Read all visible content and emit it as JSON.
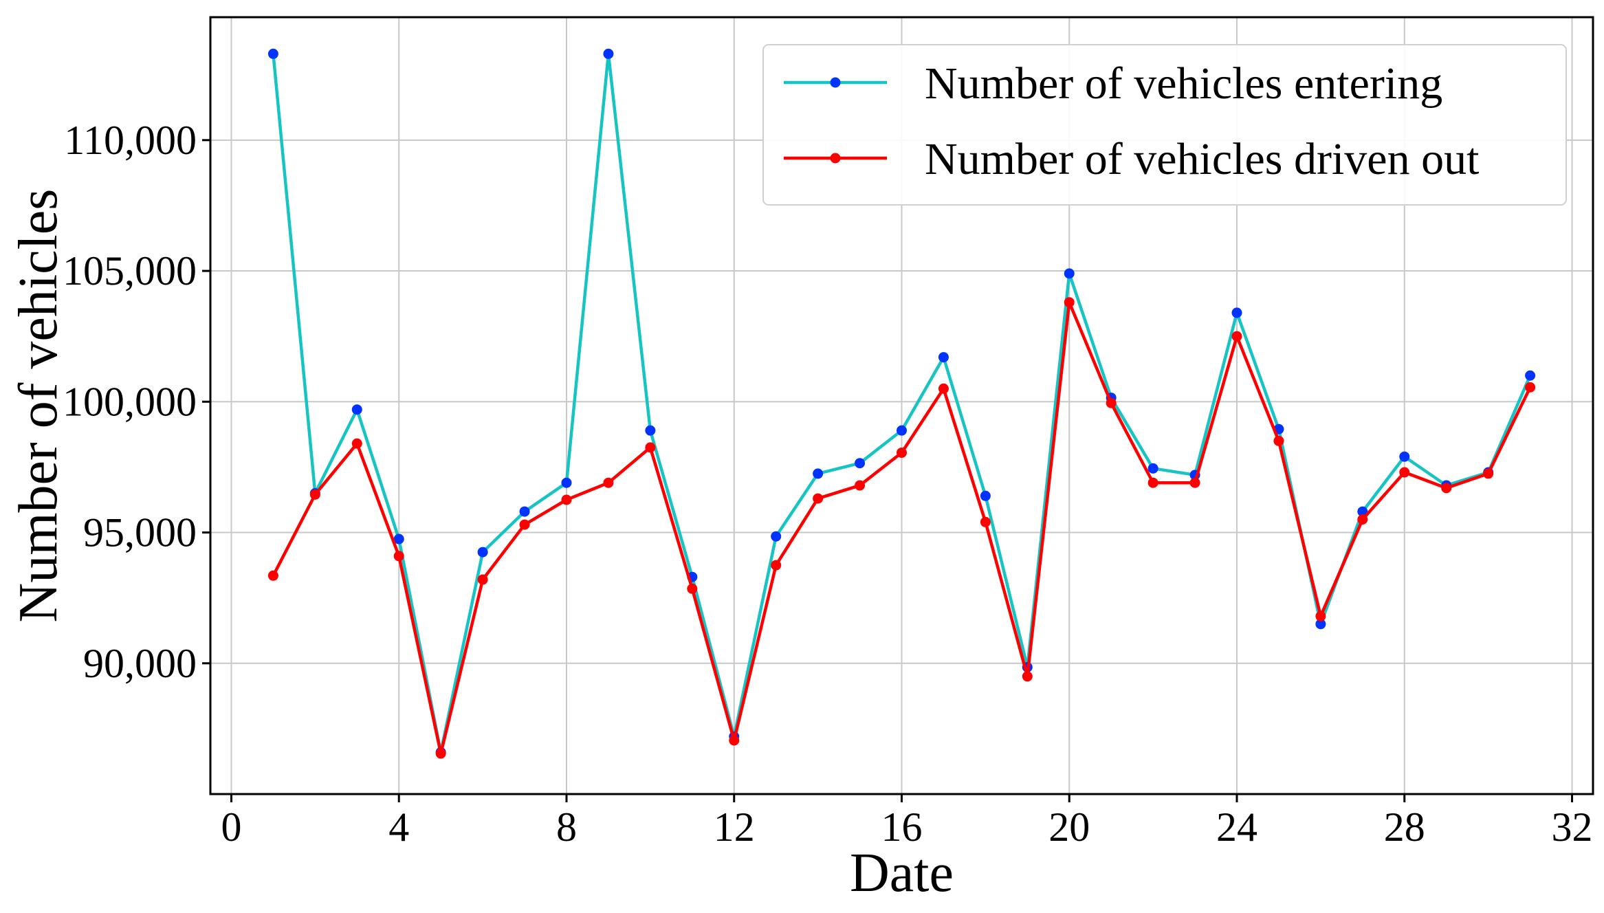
{
  "chart_data": {
    "type": "line",
    "title": "",
    "xlabel": "Date",
    "ylabel": "Number of vehicles",
    "xlim": [
      -0.5,
      32.5
    ],
    "ylim": [
      85000,
      114700
    ],
    "x_ticks": [
      0,
      4,
      8,
      12,
      16,
      20,
      24,
      28,
      32
    ],
    "y_ticks": [
      90000,
      95000,
      100000,
      105000,
      110000
    ],
    "y_tick_labels": [
      "90,000",
      "95,000",
      "100,000",
      "105,000",
      "110,000"
    ],
    "grid": true,
    "legend_position": "top-right",
    "x": [
      1,
      2,
      3,
      4,
      5,
      6,
      7,
      8,
      9,
      10,
      11,
      12,
      13,
      14,
      15,
      16,
      17,
      18,
      19,
      20,
      21,
      22,
      23,
      24,
      25,
      26,
      27,
      28,
      29,
      30,
      31
    ],
    "series": [
      {
        "name": "Number of vehicles entering",
        "line_color": "#17c4c4",
        "marker_color": "#0033ff",
        "values": [
          113300,
          96500,
          99700,
          94750,
          86600,
          94250,
          95800,
          96900,
          113300,
          98900,
          93300,
          87200,
          94850,
          97250,
          97650,
          98900,
          101700,
          96400,
          89850,
          104900,
          100150,
          97450,
          97200,
          103400,
          98950,
          91500,
          95800,
          97900,
          96800,
          97300,
          101000
        ]
      },
      {
        "name": "Number of vehicles driven out",
        "line_color": "#ff0000",
        "marker_color": "#ff0000",
        "values": [
          93350,
          96450,
          98400,
          94100,
          86550,
          93200,
          95300,
          96250,
          96900,
          98250,
          92850,
          87050,
          93750,
          96300,
          96800,
          98050,
          100500,
          95400,
          89500,
          103800,
          99950,
          96900,
          96900,
          102500,
          98500,
          91800,
          95500,
          97300,
          96700,
          97250,
          100550
        ]
      }
    ]
  }
}
